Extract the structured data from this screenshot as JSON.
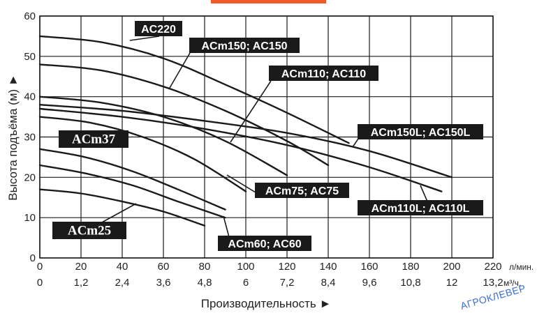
{
  "chart_data": {
    "type": "line",
    "xlabel": "Производительность ►",
    "ylabel": "Высота подъёма (м) ►",
    "xlim": [
      0,
      220
    ],
    "ylim": [
      0,
      60
    ],
    "x_ticks": [
      0,
      20,
      40,
      60,
      80,
      100,
      120,
      140,
      160,
      180,
      200,
      220
    ],
    "x_ticks_m3h": [
      "0",
      "1,2",
      "2,4",
      "3,6",
      "4,8",
      "6",
      "7,2",
      "8,4",
      "9,6",
      "10,8",
      "12",
      "13,2"
    ],
    "x_unit_lmin": "л/мин.",
    "x_unit_m3h": "м³/ч.",
    "y_ticks": [
      0,
      10,
      20,
      30,
      40,
      50,
      60
    ],
    "grid": true,
    "series": [
      {
        "name": "AC220",
        "x": [
          0,
          30,
          60,
          90,
          120,
          150
        ],
        "y": [
          55,
          53.5,
          49.5,
          43,
          36,
          28.5
        ]
      },
      {
        "name": "ACm150; AC150",
        "x": [
          0,
          30,
          60,
          90,
          120,
          140
        ],
        "y": [
          48,
          46.5,
          42.5,
          36.5,
          29,
          23
        ]
      },
      {
        "name": "ACm110; AC110",
        "x": [
          0,
          30,
          60,
          90,
          120
        ],
        "y": [
          40,
          38.5,
          35,
          29,
          20.5
        ]
      },
      {
        "name": "ACm150L; AC150L",
        "x": [
          0,
          40,
          80,
          120,
          160,
          200
        ],
        "y": [
          38,
          36.5,
          34,
          31,
          26.5,
          20
        ]
      },
      {
        "name": "ACm110L; AC110L",
        "x": [
          0,
          40,
          80,
          120,
          160,
          195
        ],
        "y": [
          37,
          35,
          32,
          28,
          22.5,
          16.5
        ]
      },
      {
        "name": "ACm75; AC75",
        "x": [
          0,
          25,
          50,
          75,
          100
        ],
        "y": [
          35,
          33.5,
          30,
          24.5,
          16.5
        ]
      },
      {
        "name": "ACm37",
        "x": [
          0,
          22,
          45,
          67,
          90
        ],
        "y": [
          27,
          25,
          21.5,
          17,
          12
        ]
      },
      {
        "name": "ACm60; AC60",
        "x": [
          0,
          22,
          45,
          67,
          90
        ],
        "y": [
          23,
          21,
          18,
          14,
          10
        ]
      },
      {
        "name": "ACm25",
        "x": [
          0,
          20,
          40,
          60,
          80
        ],
        "y": [
          17,
          16,
          14,
          11.5,
          8
        ]
      }
    ]
  },
  "watermark": "АГРОКЛЕВЕР",
  "colors": {
    "curve": "#1a1a1a",
    "label_bg": "#1a1a1a",
    "grid": "#1a1a1a",
    "top_bar": "#f05a28",
    "watermark": "#3a6fd6"
  }
}
